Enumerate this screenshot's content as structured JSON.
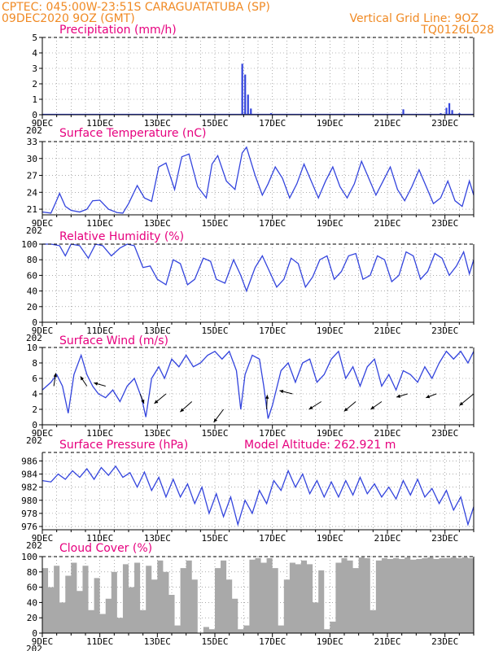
{
  "header": {
    "line1": "CPTEC:  045:00W-23:51S  CARAGUATATUBA (SP)",
    "line2": "09DEC2020 9OZ (GMT)",
    "grid_note": "Vertical Grid Line: 9OZ",
    "run_id": "TQ0126L028"
  },
  "colors": {
    "header": "#f08a24",
    "title": "#e6007e",
    "line": "#3344dd",
    "cloud": "#a9a9a9"
  },
  "x_axis": {
    "ticks": [
      "9DEC",
      "11DEC",
      "13DEC",
      "15DEC",
      "17DEC",
      "19DEC",
      "21DEC",
      "23DEC"
    ],
    "year_fragment": "202"
  },
  "chart_data": [
    {
      "type": "bar",
      "title": "Precipitation (mm/h)",
      "ylim": [
        0,
        5
      ],
      "yticks": [
        0,
        1,
        2,
        3,
        4,
        5
      ],
      "x": [
        15.95,
        16.05,
        16.15,
        16.25,
        16.95,
        21.55,
        22.85,
        23.05,
        23.15,
        23.25,
        23.5
      ],
      "values": [
        3.3,
        2.6,
        1.3,
        0.4,
        0.1,
        0.35,
        0.1,
        0.45,
        0.75,
        0.3,
        0.1
      ]
    },
    {
      "type": "line",
      "title": "Surface Temperature (nC)",
      "ylim": [
        20,
        33
      ],
      "yticks": [
        21,
        24,
        27,
        30,
        33
      ],
      "x": [
        9.0,
        9.3,
        9.45,
        9.6,
        9.8,
        10.0,
        10.3,
        10.55,
        10.75,
        11.0,
        11.3,
        11.6,
        11.8,
        12.0,
        12.3,
        12.55,
        12.8,
        13.05,
        13.3,
        13.6,
        13.85,
        14.1,
        14.4,
        14.7,
        14.9,
        15.1,
        15.4,
        15.7,
        15.95,
        16.1,
        16.4,
        16.65,
        16.85,
        17.1,
        17.35,
        17.6,
        17.85,
        18.1,
        18.35,
        18.6,
        18.85,
        19.1,
        19.35,
        19.6,
        19.85,
        20.1,
        20.35,
        20.6,
        20.85,
        21.1,
        21.35,
        21.6,
        21.85,
        22.1,
        22.35,
        22.6,
        22.85,
        23.1,
        23.35,
        23.6,
        23.85,
        24.0
      ],
      "values": [
        20.5,
        20.3,
        22.0,
        23.8,
        21.5,
        20.8,
        20.5,
        21.0,
        22.5,
        22.6,
        21.0,
        20.4,
        20.3,
        22.0,
        25.2,
        23.0,
        22.4,
        28.5,
        29.2,
        24.5,
        30.3,
        30.8,
        25.0,
        23.0,
        29.0,
        30.5,
        26.0,
        24.5,
        31.0,
        32.0,
        27.0,
        23.5,
        25.5,
        28.5,
        26.5,
        23.0,
        25.5,
        29.0,
        26.0,
        23.0,
        26.0,
        28.5,
        25.0,
        23.0,
        25.5,
        29.5,
        26.5,
        23.5,
        26.0,
        28.5,
        24.5,
        22.5,
        25.0,
        28.0,
        25.0,
        22.0,
        23.0,
        26.0,
        22.5,
        21.5,
        26.0,
        23.5
      ]
    },
    {
      "type": "line",
      "title": "Relative Humidity (%)",
      "ylim": [
        0,
        100
      ],
      "yticks": [
        0,
        20,
        40,
        60,
        80,
        100
      ],
      "x": [
        9.0,
        9.3,
        9.6,
        9.8,
        10.0,
        10.3,
        10.6,
        10.85,
        11.1,
        11.4,
        11.7,
        11.95,
        12.2,
        12.5,
        12.75,
        13.0,
        13.3,
        13.55,
        13.8,
        14.05,
        14.3,
        14.6,
        14.85,
        15.05,
        15.35,
        15.65,
        15.9,
        16.1,
        16.4,
        16.65,
        16.9,
        17.15,
        17.4,
        17.65,
        17.9,
        18.15,
        18.4,
        18.65,
        18.9,
        19.15,
        19.4,
        19.65,
        19.9,
        20.15,
        20.4,
        20.65,
        20.9,
        21.15,
        21.4,
        21.65,
        21.9,
        22.15,
        22.4,
        22.65,
        22.9,
        23.15,
        23.4,
        23.65,
        23.85,
        24.0
      ],
      "values": [
        100,
        100,
        98,
        85,
        100,
        98,
        82,
        100,
        98,
        85,
        95,
        100,
        98,
        70,
        72,
        55,
        48,
        80,
        75,
        48,
        55,
        82,
        78,
        55,
        50,
        80,
        60,
        40,
        70,
        85,
        65,
        45,
        55,
        82,
        75,
        45,
        58,
        80,
        85,
        55,
        65,
        85,
        88,
        55,
        60,
        85,
        80,
        52,
        60,
        90,
        85,
        55,
        65,
        88,
        82,
        60,
        72,
        90,
        62,
        80
      ]
    },
    {
      "type": "line",
      "title": "Surface Wind (m/s)",
      "ylim": [
        0,
        10
      ],
      "yticks": [
        0,
        2,
        4,
        6,
        8,
        10
      ],
      "x": [
        9.0,
        9.3,
        9.5,
        9.7,
        9.9,
        10.1,
        10.35,
        10.55,
        10.75,
        10.95,
        11.2,
        11.45,
        11.7,
        11.95,
        12.2,
        12.45,
        12.6,
        12.8,
        13.05,
        13.25,
        13.5,
        13.75,
        14.0,
        14.25,
        14.5,
        14.75,
        15.0,
        15.25,
        15.5,
        15.75,
        15.9,
        16.05,
        16.3,
        16.55,
        16.7,
        16.85,
        17.0,
        17.3,
        17.55,
        17.8,
        18.05,
        18.3,
        18.55,
        18.8,
        19.05,
        19.3,
        19.55,
        19.8,
        20.05,
        20.3,
        20.55,
        20.8,
        21.05,
        21.3,
        21.55,
        21.8,
        22.05,
        22.3,
        22.55,
        22.8,
        23.05,
        23.3,
        23.55,
        23.8,
        24.0
      ],
      "values": [
        4.5,
        5.5,
        6.5,
        5.0,
        1.5,
        6.5,
        9.0,
        6.5,
        5.0,
        4.0,
        3.5,
        4.5,
        3.0,
        5.0,
        6.0,
        3.5,
        1.0,
        6.0,
        7.5,
        6.0,
        8.5,
        7.5,
        9.0,
        7.5,
        8.0,
        9.0,
        9.5,
        8.5,
        9.5,
        7.0,
        2.0,
        6.5,
        9.0,
        8.5,
        5.0,
        0.8,
        2.5,
        7.0,
        8.0,
        5.5,
        8.0,
        8.5,
        5.5,
        6.5,
        8.5,
        9.5,
        6.0,
        7.5,
        5.0,
        7.5,
        8.5,
        5.0,
        6.5,
        4.5,
        7.0,
        6.5,
        5.5,
        7.5,
        6.0,
        8.0,
        9.5,
        8.5,
        9.5,
        8.0,
        9.5
      ],
      "vectors": [
        {
          "x": 9.4,
          "y": 5,
          "u": 0.3,
          "v": 2
        },
        {
          "x": 10.55,
          "y": 5,
          "u": -1.0,
          "v": 1.5
        },
        {
          "x": 11.2,
          "y": 5,
          "u": -1.8,
          "v": 0.5
        },
        {
          "x": 12.4,
          "y": 4,
          "u": 0.6,
          "v": -1.5
        },
        {
          "x": 13.3,
          "y": 4,
          "u": -1.8,
          "v": -1.5
        },
        {
          "x": 14.2,
          "y": 3,
          "u": -1.8,
          "v": -1.6
        },
        {
          "x": 15.3,
          "y": 2,
          "u": -1.5,
          "v": -2.0
        },
        {
          "x": 16.8,
          "y": 2,
          "u": 0.1,
          "v": 2.2
        },
        {
          "x": 17.7,
          "y": 4,
          "u": -2.0,
          "v": 0.5
        },
        {
          "x": 18.7,
          "y": 3,
          "u": -1.9,
          "v": -1.2
        },
        {
          "x": 19.9,
          "y": 3,
          "u": -1.8,
          "v": -1.5
        },
        {
          "x": 20.8,
          "y": 3,
          "u": -1.7,
          "v": -1.2
        },
        {
          "x": 21.7,
          "y": 4,
          "u": -1.7,
          "v": -0.5
        },
        {
          "x": 22.7,
          "y": 4,
          "u": -1.6,
          "v": -0.6
        },
        {
          "x": 24.0,
          "y": 4,
          "u": -2.2,
          "v": -1.8
        }
      ]
    },
    {
      "type": "line",
      "title": "Surface Pressure (hPa)",
      "subtitle": "Model Altitude: 262.921  m",
      "ylim": [
        975.5,
        987.3
      ],
      "yticks": [
        976,
        978,
        980,
        982,
        984,
        986
      ],
      "x": [
        9.0,
        9.3,
        9.55,
        9.8,
        10.05,
        10.3,
        10.55,
        10.8,
        11.05,
        11.3,
        11.55,
        11.8,
        12.05,
        12.3,
        12.55,
        12.8,
        13.05,
        13.3,
        13.55,
        13.8,
        14.05,
        14.3,
        14.55,
        14.8,
        15.05,
        15.3,
        15.55,
        15.8,
        16.05,
        16.3,
        16.55,
        16.8,
        17.05,
        17.3,
        17.55,
        17.8,
        18.05,
        18.3,
        18.55,
        18.8,
        19.05,
        19.3,
        19.55,
        19.8,
        20.05,
        20.3,
        20.55,
        20.8,
        21.05,
        21.3,
        21.55,
        21.8,
        22.05,
        22.3,
        22.55,
        22.8,
        23.05,
        23.3,
        23.55,
        23.8,
        24.0
      ],
      "values": [
        983,
        982.8,
        984,
        983.2,
        984.5,
        983.5,
        984.8,
        983.2,
        985,
        983.8,
        985.2,
        983.5,
        984.2,
        982,
        984.3,
        981.5,
        983.5,
        980.5,
        983.2,
        980.5,
        982.5,
        979.5,
        982,
        978,
        981,
        977.5,
        980.5,
        976.3,
        980,
        978,
        981.5,
        979.5,
        983,
        981.5,
        984.5,
        982,
        984,
        981,
        983,
        980.5,
        982.8,
        980.5,
        983,
        980.8,
        983.5,
        981,
        982.5,
        980.5,
        982,
        980.2,
        983,
        980.8,
        983.2,
        980.5,
        981.8,
        979.5,
        981.5,
        978.5,
        980.5,
        976.3,
        979
      ]
    },
    {
      "type": "area",
      "title": "Cloud Cover (%)",
      "ylim": [
        0,
        100
      ],
      "yticks": [
        0,
        20,
        40,
        60,
        80,
        100
      ],
      "x": [
        9.0,
        9.2,
        9.4,
        9.6,
        9.8,
        10.0,
        10.2,
        10.4,
        10.6,
        10.8,
        11.0,
        11.2,
        11.4,
        11.6,
        11.8,
        12.0,
        12.2,
        12.4,
        12.6,
        12.8,
        13.0,
        13.2,
        13.4,
        13.6,
        13.8,
        14.0,
        14.2,
        14.4,
        14.6,
        14.8,
        15.0,
        15.2,
        15.4,
        15.6,
        15.8,
        16.0,
        16.2,
        16.4,
        16.6,
        16.8,
        17.0,
        17.2,
        17.4,
        17.6,
        17.8,
        18.0,
        18.2,
        18.4,
        18.6,
        18.8,
        19.0,
        19.2,
        19.4,
        19.6,
        19.8,
        20.0,
        20.2,
        20.4,
        20.6,
        20.8,
        21.0,
        21.2,
        21.4,
        21.6,
        21.8,
        22.0,
        22.2,
        22.4,
        22.6,
        22.8,
        23.0,
        23.2,
        23.4,
        23.6,
        23.8,
        24.0
      ],
      "values": [
        85,
        60,
        88,
        40,
        75,
        92,
        55,
        88,
        30,
        72,
        25,
        45,
        80,
        20,
        90,
        60,
        92,
        30,
        88,
        70,
        95,
        80,
        50,
        10,
        85,
        95,
        70,
        0,
        8,
        5,
        85,
        95,
        70,
        45,
        5,
        10,
        96,
        98,
        92,
        98,
        85,
        10,
        70,
        92,
        90,
        95,
        90,
        40,
        82,
        5,
        15,
        92,
        98,
        95,
        85,
        99,
        98,
        30,
        95,
        98,
        97,
        98,
        97,
        99,
        96,
        97,
        98,
        99,
        97,
        98,
        98,
        99,
        98,
        99,
        98,
        99
      ]
    }
  ]
}
